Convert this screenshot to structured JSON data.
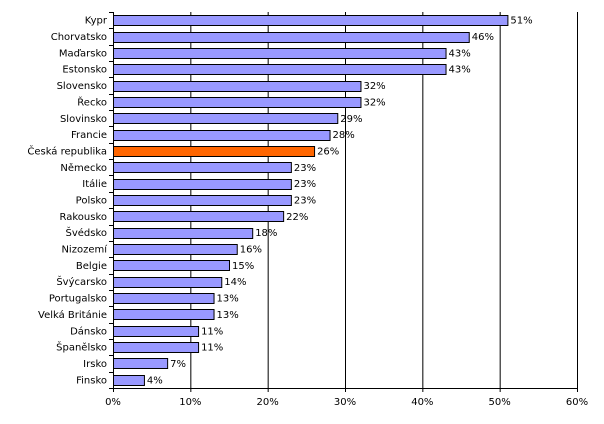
{
  "chart_data": {
    "type": "bar",
    "orientation": "horizontal",
    "categories": [
      "Kypr",
      "Chorvatsko",
      "Maďarsko",
      "Estonsko",
      "Slovensko",
      "Řecko",
      "Slovinsko",
      "Francie",
      "Česká republika",
      "Německo",
      "Itálie",
      "Polsko",
      "Rakousko",
      "Švédsko",
      "Nizozemí",
      "Belgie",
      "Švýcarsko",
      "Portugalsko",
      "Velká Británie",
      "Dánsko",
      "Španělsko",
      "Irsko",
      "Finsko"
    ],
    "values": [
      51,
      46,
      43,
      43,
      32,
      32,
      29,
      28,
      26,
      23,
      23,
      23,
      22,
      18,
      16,
      15,
      14,
      13,
      13,
      11,
      11,
      7,
      4
    ],
    "data_labels": [
      "51%",
      "46%",
      "43%",
      "43%",
      "32%",
      "32%",
      "29%",
      "28%",
      "26%",
      "23%",
      "23%",
      "23%",
      "22%",
      "18%",
      "16%",
      "15%",
      "14%",
      "13%",
      "13%",
      "11%",
      "11%",
      "7%",
      "4%"
    ],
    "xlim": [
      0,
      60
    ],
    "x_ticks": [
      0,
      10,
      20,
      30,
      40,
      50,
      60
    ],
    "x_tick_labels": [
      "0%",
      "10%",
      "20%",
      "30%",
      "40%",
      "50%",
      "60%"
    ],
    "highlight_category": "Česká republika",
    "grid": "vertical",
    "colors": {
      "bar": "#9999ff",
      "highlight": "#ff6600",
      "bar_edge": "#000000",
      "grid": "#000000"
    }
  }
}
